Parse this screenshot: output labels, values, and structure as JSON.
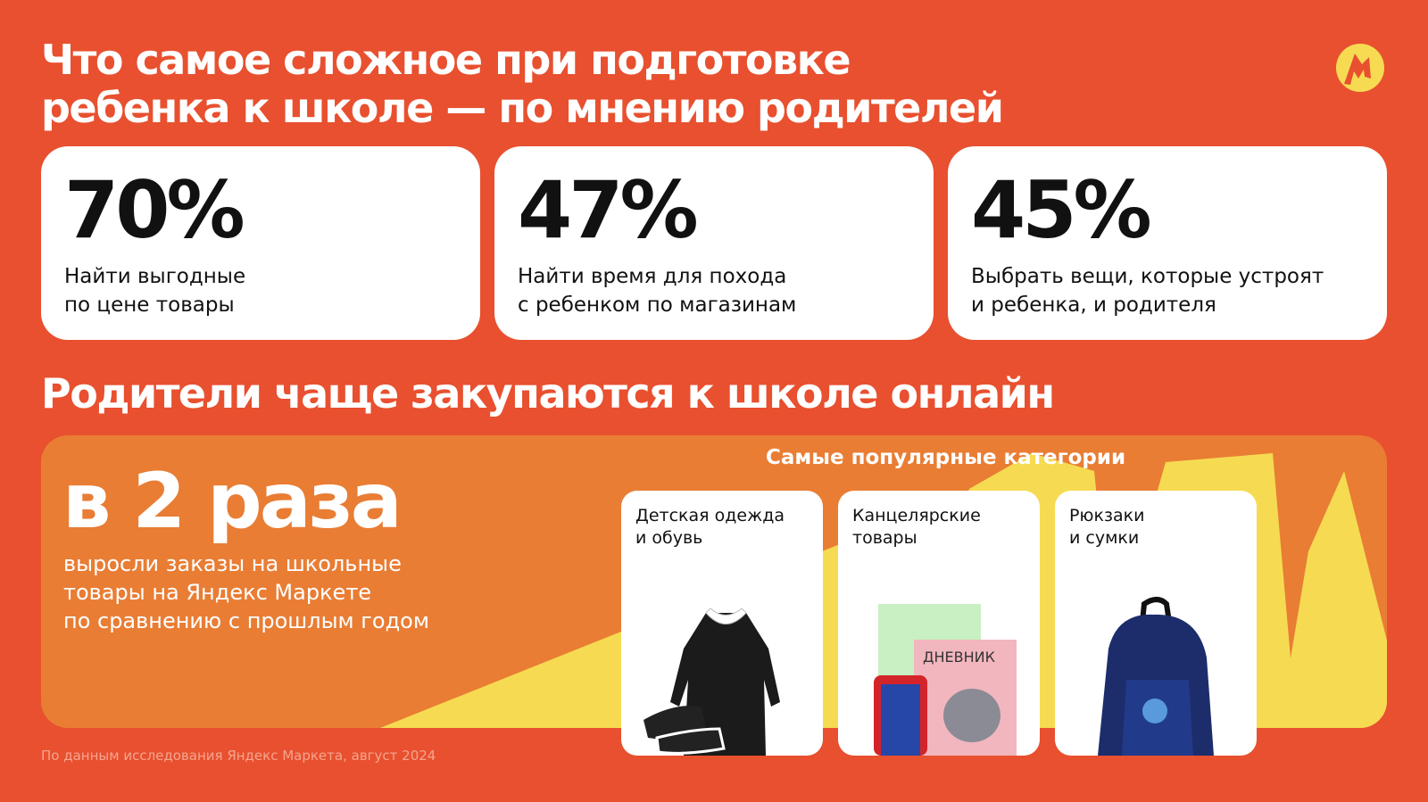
{
  "header": {
    "title_line1": "Что самое сложное при подготовке",
    "title_line2": "ребенка к школе — по мнению родителей",
    "logo": "yandex-market-logo"
  },
  "stats": [
    {
      "value": "70%",
      "text": "Найти выгодные\nпо цене товары"
    },
    {
      "value": "47%",
      "text": "Найти время для похода\nс ребенком по магазинам"
    },
    {
      "value": "45%",
      "text": "Выбрать вещи, которые устроят\nи ребенка, и родителя"
    }
  ],
  "online": {
    "heading": "Родители чаще закупаются к школе онлайн",
    "big": "в 2 раза",
    "description": "выросли заказы на школьные\nтовары на Яндекс Маркете\nпо сравнению с прошлым годом"
  },
  "categories": {
    "heading": "Самые популярные категории",
    "items": [
      {
        "label": "Детская одежда\nи обувь",
        "image": "school-dress-and-shoes"
      },
      {
        "label": "Канцелярские\nтовары",
        "image": "notebook-diary-pencil-case"
      },
      {
        "label": "Рюкзаки\nи сумки",
        "image": "blue-backpack"
      }
    ]
  },
  "footer": {
    "source": "По данным исследования Яндекс Маркета, август 2024"
  },
  "colors": {
    "background": "#E8502F",
    "panel": "#E97D34",
    "accent_yellow": "#F6DB52"
  }
}
